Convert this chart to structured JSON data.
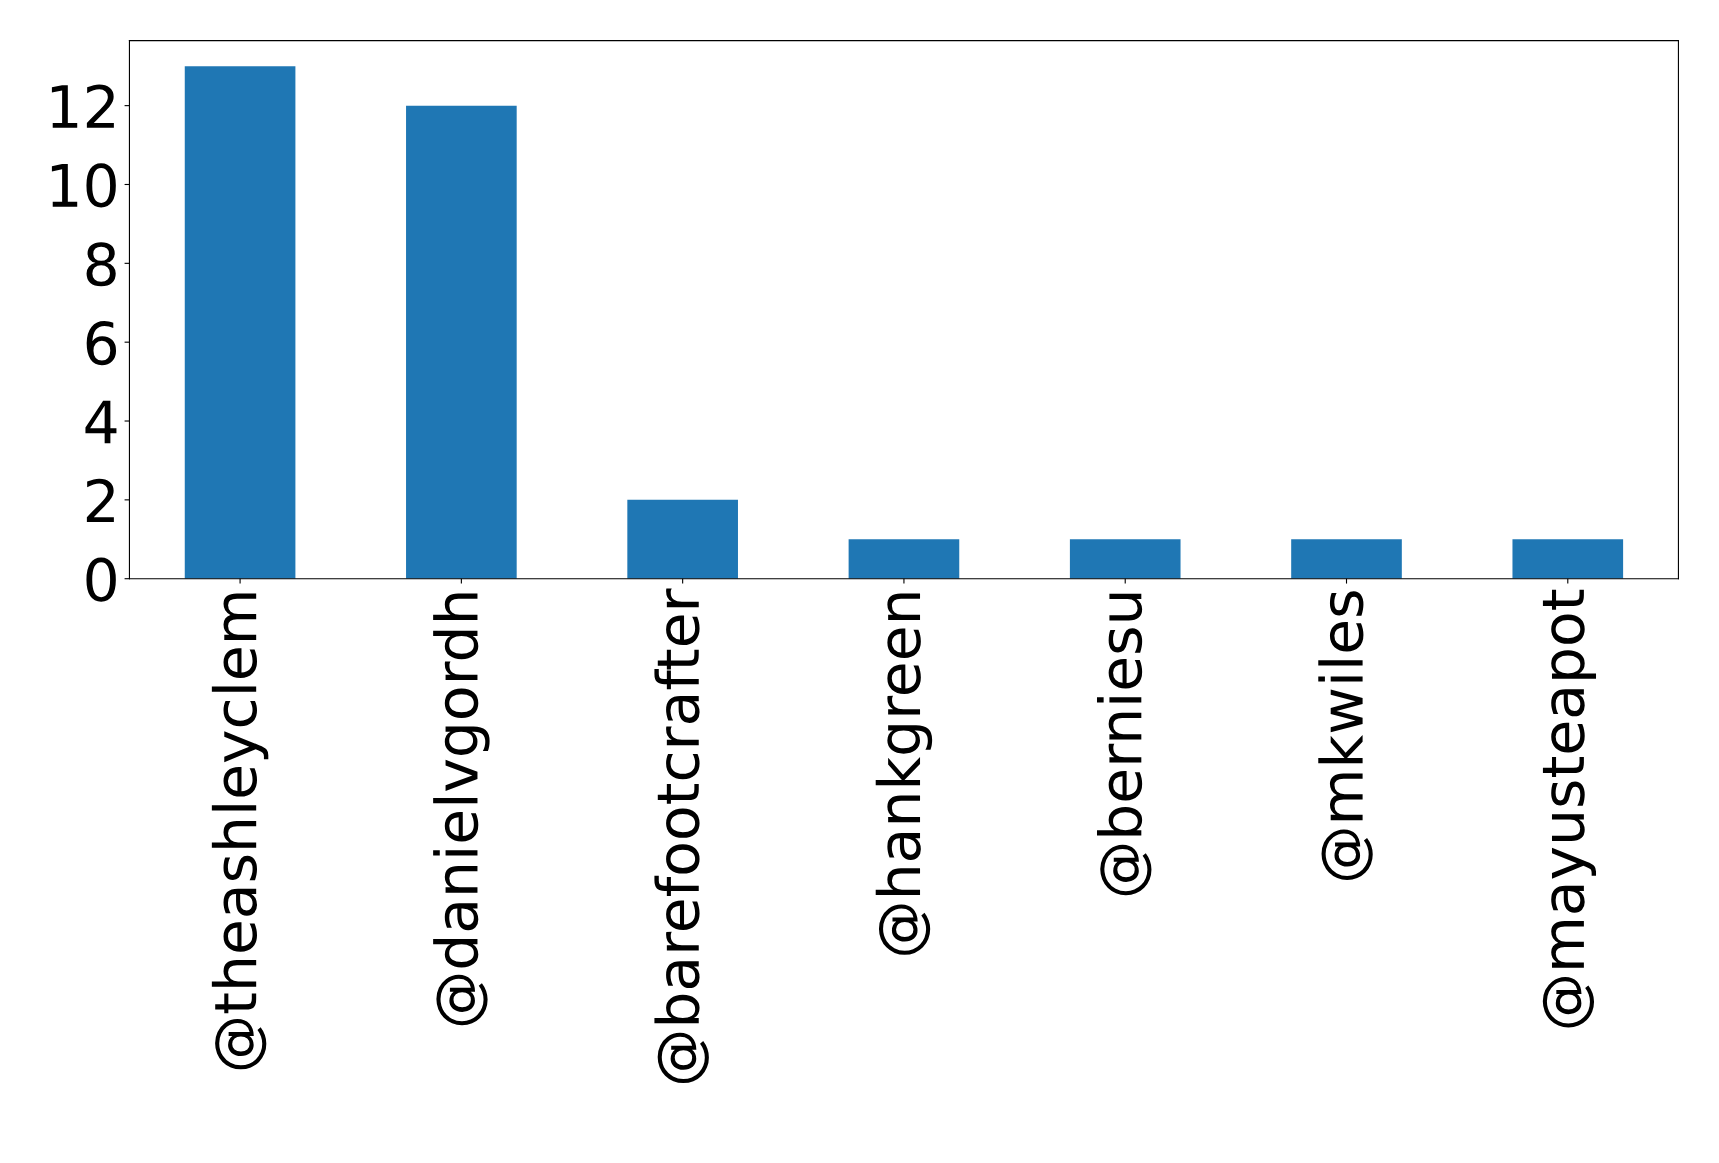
{
  "chart_data": {
    "type": "bar",
    "categories": [
      "@theashleyclem",
      "@danielvgordh",
      "@barefootcrafter",
      "@hankgreen",
      "@berniesu",
      "@mkwiles",
      "@mayusteapot"
    ],
    "values": [
      13,
      12,
      2,
      1,
      1,
      1,
      1
    ],
    "color": "#1f77b4",
    "ylim": [
      0,
      13.65
    ],
    "yticks": [
      0,
      2,
      4,
      6,
      8,
      10,
      12
    ],
    "grid": false,
    "legend": false
  }
}
